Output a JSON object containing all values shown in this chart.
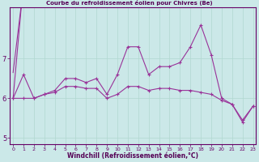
{
  "background_color": "#cbe8e8",
  "grid_color": "#b0d8d0",
  "line_color": "#993399",
  "xlabel": "Windchill (Refroidissement éolien,°C)",
  "x_hours": [
    0,
    1,
    2,
    3,
    4,
    5,
    6,
    7,
    8,
    9,
    10,
    11,
    12,
    13,
    14,
    15,
    16,
    17,
    18,
    19,
    20,
    21,
    22,
    23
  ],
  "series_main": [
    6.0,
    6.6,
    6.0,
    6.1,
    6.2,
    6.5,
    6.5,
    6.4,
    6.5,
    6.1,
    6.6,
    7.3,
    7.3,
    6.6,
    6.8,
    6.8,
    6.9,
    7.3,
    7.85,
    7.1,
    6.0,
    5.85,
    5.4,
    5.8
  ],
  "series2": [
    6.0,
    6.0,
    6.0,
    6.1,
    6.15,
    6.3,
    6.3,
    6.25,
    6.25,
    6.0,
    6.1,
    6.3,
    6.3,
    6.2,
    6.25,
    6.25,
    6.2,
    6.2,
    6.15,
    6.1,
    5.95,
    5.85,
    5.45,
    5.8
  ],
  "upper_trend": [
    6.65,
    0,
    7.05,
    22
  ],
  "lower_trend": [
    6.0,
    0,
    5.78,
    23
  ],
  "ylim": [
    4.85,
    8.3
  ],
  "yticks": [
    5,
    6,
    7
  ],
  "xlim": [
    -0.3,
    23.3
  ],
  "xtick_labels": [
    "0",
    "1",
    "2",
    "3",
    "4",
    "5",
    "6",
    "7",
    "8",
    "9",
    "10",
    "11",
    "12",
    "13",
    "14",
    "15",
    "16",
    "17",
    "18",
    "19",
    "20",
    "21",
    "22",
    "23"
  ]
}
